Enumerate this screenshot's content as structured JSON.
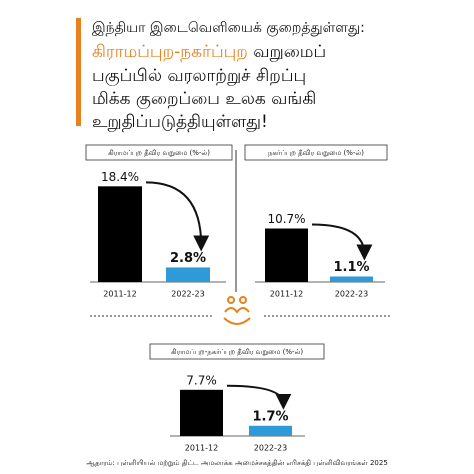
{
  "header": {
    "lines": [
      "இந்தியா இடைவெளியைக் குறைத்துள்ளது:",
      "கிராமப்புற-நகர்ப்புற",
      "வறுமைப்",
      "பகுப்பில் வரலாற்றுச் சிறப்பு",
      "மிக்க குறைப்பை உலக வங்கி",
      "உறுதிப்படுத்தியுள்ளது!"
    ]
  },
  "chart_data": [
    {
      "type": "bar",
      "title": "கிராமப்புற தீவிர வறுமை (%-ல்)",
      "categories": [
        "2011-12",
        "2022-23"
      ],
      "values": [
        18.4,
        2.8
      ],
      "value_labels": [
        "18.4%",
        "2.8%"
      ],
      "colors": [
        "#000000",
        "#2f9ad8"
      ]
    },
    {
      "type": "bar",
      "title": "நகர்ப்புற தீவிர வறுமை (%-ல்)",
      "categories": [
        "2011-12",
        "2022-23"
      ],
      "values": [
        10.7,
        1.1
      ],
      "value_labels": [
        "10.7%",
        "1.1%"
      ],
      "colors": [
        "#000000",
        "#2f9ad8"
      ]
    },
    {
      "type": "bar",
      "title": "கிராமப்புற-நகர்ப்புற தீவிர வறுமை (%-ல்)",
      "categories": [
        "2011-12",
        "2022-23"
      ],
      "values": [
        7.7,
        1.7
      ],
      "value_labels": [
        "7.7%",
        "1.7%"
      ],
      "colors": [
        "#000000",
        "#2f9ad8"
      ]
    }
  ],
  "source": "ஆதாரம்: புள்ளியியல் மற்றும் திட்ட அமலாக்க அமைச்சகத்தின் எரிசக்தி புள்ளிவிவரங்கள் 2025"
}
